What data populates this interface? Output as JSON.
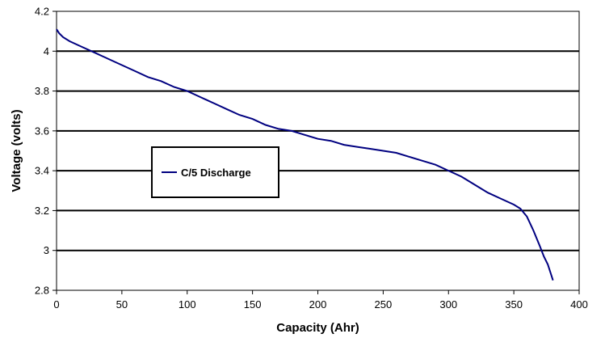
{
  "chart_data": {
    "type": "line",
    "xlabel": "Capacity (Ahr)",
    "ylabel": "Voltage (volts)",
    "xlim": [
      0,
      400
    ],
    "ylim": [
      2.8,
      4.2
    ],
    "x_ticks": [
      "0",
      "50",
      "100",
      "150",
      "200",
      "250",
      "300",
      "350",
      "400"
    ],
    "y_ticks": [
      "2.8",
      "3",
      "3.2",
      "3.4",
      "3.6",
      "3.8",
      "4",
      "4.2"
    ],
    "grid": "horizontal",
    "legend_placement": "center-left",
    "series": [
      {
        "name": "C/5 Discharge",
        "color": "#000080",
        "x": [
          0,
          2,
          5,
          10,
          20,
          30,
          40,
          50,
          60,
          70,
          80,
          90,
          100,
          110,
          120,
          130,
          140,
          150,
          160,
          170,
          180,
          190,
          200,
          210,
          220,
          230,
          240,
          250,
          260,
          270,
          280,
          290,
          300,
          310,
          320,
          330,
          340,
          350,
          355,
          360,
          365,
          370,
          373,
          376,
          378,
          380
        ],
        "y": [
          4.11,
          4.09,
          4.07,
          4.05,
          4.02,
          3.99,
          3.96,
          3.93,
          3.9,
          3.87,
          3.85,
          3.82,
          3.8,
          3.77,
          3.74,
          3.71,
          3.68,
          3.66,
          3.63,
          3.61,
          3.6,
          3.58,
          3.56,
          3.55,
          3.53,
          3.52,
          3.51,
          3.5,
          3.49,
          3.47,
          3.45,
          3.43,
          3.4,
          3.37,
          3.33,
          3.29,
          3.26,
          3.23,
          3.21,
          3.17,
          3.1,
          3.02,
          2.97,
          2.93,
          2.89,
          2.85
        ]
      }
    ]
  }
}
